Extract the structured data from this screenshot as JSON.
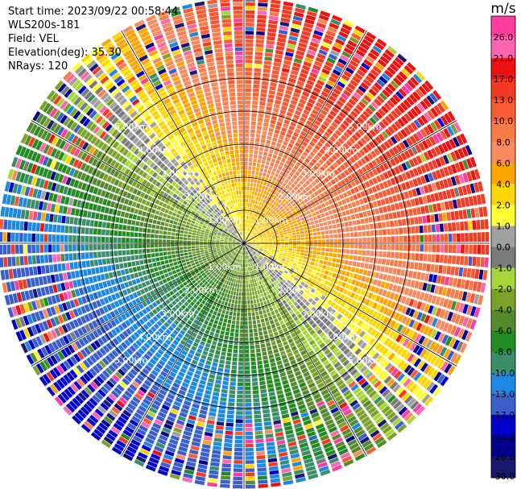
{
  "header": {
    "start_time": "Start time: 2023/09/22 00:58:44",
    "instrument": "WLS200s-181",
    "field": "Field: VEL",
    "elevation": "Elevation(deg): 35.30",
    "nrays": "NRays: 120"
  },
  "chart_data": {
    "type": "ppi_polar",
    "field": "VEL",
    "nrays": 120,
    "elevation_deg": 35.3,
    "range_rings_km": [
      1.0,
      2.0,
      3.0,
      4.0,
      5.0
    ],
    "ring_labels": [
      "1.00km",
      "2.00km",
      "3.00km",
      "4.00km",
      "5.00km"
    ],
    "colorbar": {
      "unit": "m/s",
      "ticks": [
        "26.0",
        "21.0",
        "17.0",
        "13.0",
        "10.0",
        "8.0",
        "6.0",
        "4.0",
        "2.0",
        "1.0",
        "0.0",
        "-1.0",
        "-2.0",
        "-4.0",
        "-6.0",
        "-8.0",
        "-10.0",
        "-13.0",
        "-17.0",
        "-21.0",
        "-26.0",
        "-30.0"
      ],
      "bins": [
        {
          "min": 26,
          "max": 30,
          "color": "#ff3ca0"
        },
        {
          "min": 21,
          "max": 26,
          "color": "#ff66b0"
        },
        {
          "min": 17,
          "max": 21,
          "color": "#ee1111"
        },
        {
          "min": 13,
          "max": 17,
          "color": "#f53a23"
        },
        {
          "min": 10,
          "max": 13,
          "color": "#fa5a35"
        },
        {
          "min": 8,
          "max": 10,
          "color": "#fa7c48"
        },
        {
          "min": 6,
          "max": 8,
          "color": "#fa8a60"
        },
        {
          "min": 4,
          "max": 6,
          "color": "#ffa500"
        },
        {
          "min": 2,
          "max": 4,
          "color": "#ffd700"
        },
        {
          "min": 1,
          "max": 2,
          "color": "#ffff33"
        },
        {
          "min": 0,
          "max": 1,
          "color": "#a0a0a0"
        },
        {
          "min": -1,
          "max": 0,
          "color": "#7b7b7b"
        },
        {
          "min": -2,
          "max": -1,
          "color": "#a6d63a"
        },
        {
          "min": -4,
          "max": -2,
          "color": "#7ba32a"
        },
        {
          "min": -6,
          "max": -4,
          "color": "#558b2f"
        },
        {
          "min": -8,
          "max": -6,
          "color": "#228b22"
        },
        {
          "min": -10,
          "max": -8,
          "color": "#3a8f6a"
        },
        {
          "min": -13,
          "max": -10,
          "color": "#1e88e5"
        },
        {
          "min": -17,
          "max": -13,
          "color": "#3a5fcd"
        },
        {
          "min": -21,
          "max": -17,
          "color": "#0000cd"
        },
        {
          "min": -26,
          "max": -21,
          "color": "#00008b"
        },
        {
          "min": -30,
          "max": -26,
          "color": "#191970"
        }
      ]
    }
  }
}
